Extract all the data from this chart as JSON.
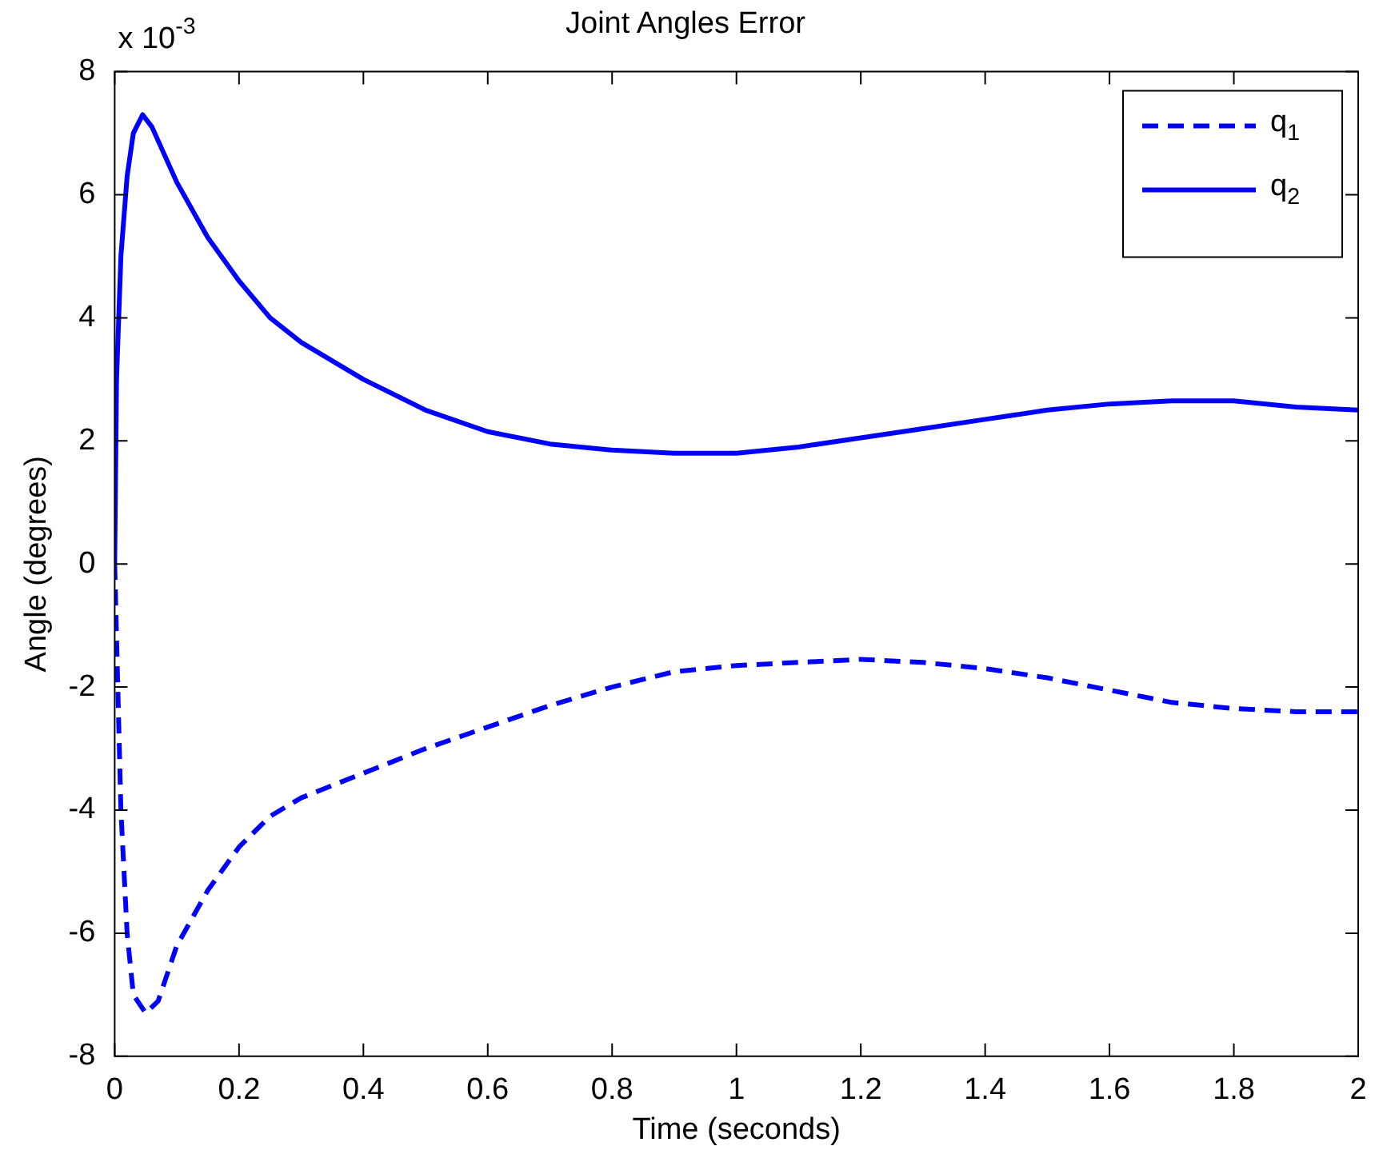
{
  "chart_data": {
    "type": "line",
    "title": "Joint Angles Error",
    "xlabel": "Time (seconds)",
    "ylabel": "Angle (degrees)",
    "annotations": [
      "x 10$^{-3}$"
    ],
    "xlim": [
      0,
      2
    ],
    "xticks": [
      0,
      0.2,
      0.4,
      0.6,
      0.8,
      1,
      1.2,
      1.4,
      1.6,
      1.8,
      2
    ],
    "ylim": [
      -8,
      8
    ],
    "yticks": [
      -8,
      -6,
      -4,
      -2,
      0,
      2,
      4,
      6,
      8
    ],
    "grid": false,
    "legend": "top right",
    "marker": "none",
    "series": [
      {
        "name": "q$_{1}$",
        "color": "#0000ff",
        "line_style": "dashed",
        "x": [
          0,
          0.005,
          0.01,
          0.02,
          0.03,
          0.05,
          0.07,
          0.1,
          0.15,
          0.2,
          0.25,
          0.3,
          0.4,
          0.5,
          0.6,
          0.7,
          0.8,
          0.9,
          1.0,
          1.1,
          1.2,
          1.3,
          1.4,
          1.5,
          1.6,
          1.7,
          1.8,
          1.9,
          2.0
        ],
        "values": [
          0,
          -2,
          -4,
          -6,
          -7,
          -7.3,
          -7.1,
          -6.2,
          -5.3,
          -4.6,
          -4.1,
          -3.8,
          -3.4,
          -3.0,
          -2.65,
          -2.3,
          -2.0,
          -1.75,
          -1.65,
          -1.6,
          -1.55,
          -1.6,
          -1.7,
          -1.85,
          -2.05,
          -2.25,
          -2.35,
          -2.4,
          -2.4
        ]
      },
      {
        "name": "q$_{2}$",
        "color": "#0000ff",
        "line_style": "solid",
        "x": [
          0,
          0.003,
          0.01,
          0.02,
          0.03,
          0.045,
          0.06,
          0.1,
          0.15,
          0.2,
          0.25,
          0.3,
          0.4,
          0.5,
          0.6,
          0.7,
          0.8,
          0.9,
          1.0,
          1.1,
          1.2,
          1.3,
          1.4,
          1.5,
          1.6,
          1.7,
          1.8,
          1.9,
          2.0
        ],
        "values": [
          0,
          3,
          5,
          6.3,
          7,
          7.3,
          7.1,
          6.2,
          5.3,
          4.6,
          4.0,
          3.6,
          3.0,
          2.5,
          2.15,
          1.95,
          1.85,
          1.8,
          1.8,
          1.9,
          2.05,
          2.2,
          2.35,
          2.5,
          2.6,
          2.65,
          2.65,
          2.55,
          2.5
        ]
      }
    ]
  }
}
